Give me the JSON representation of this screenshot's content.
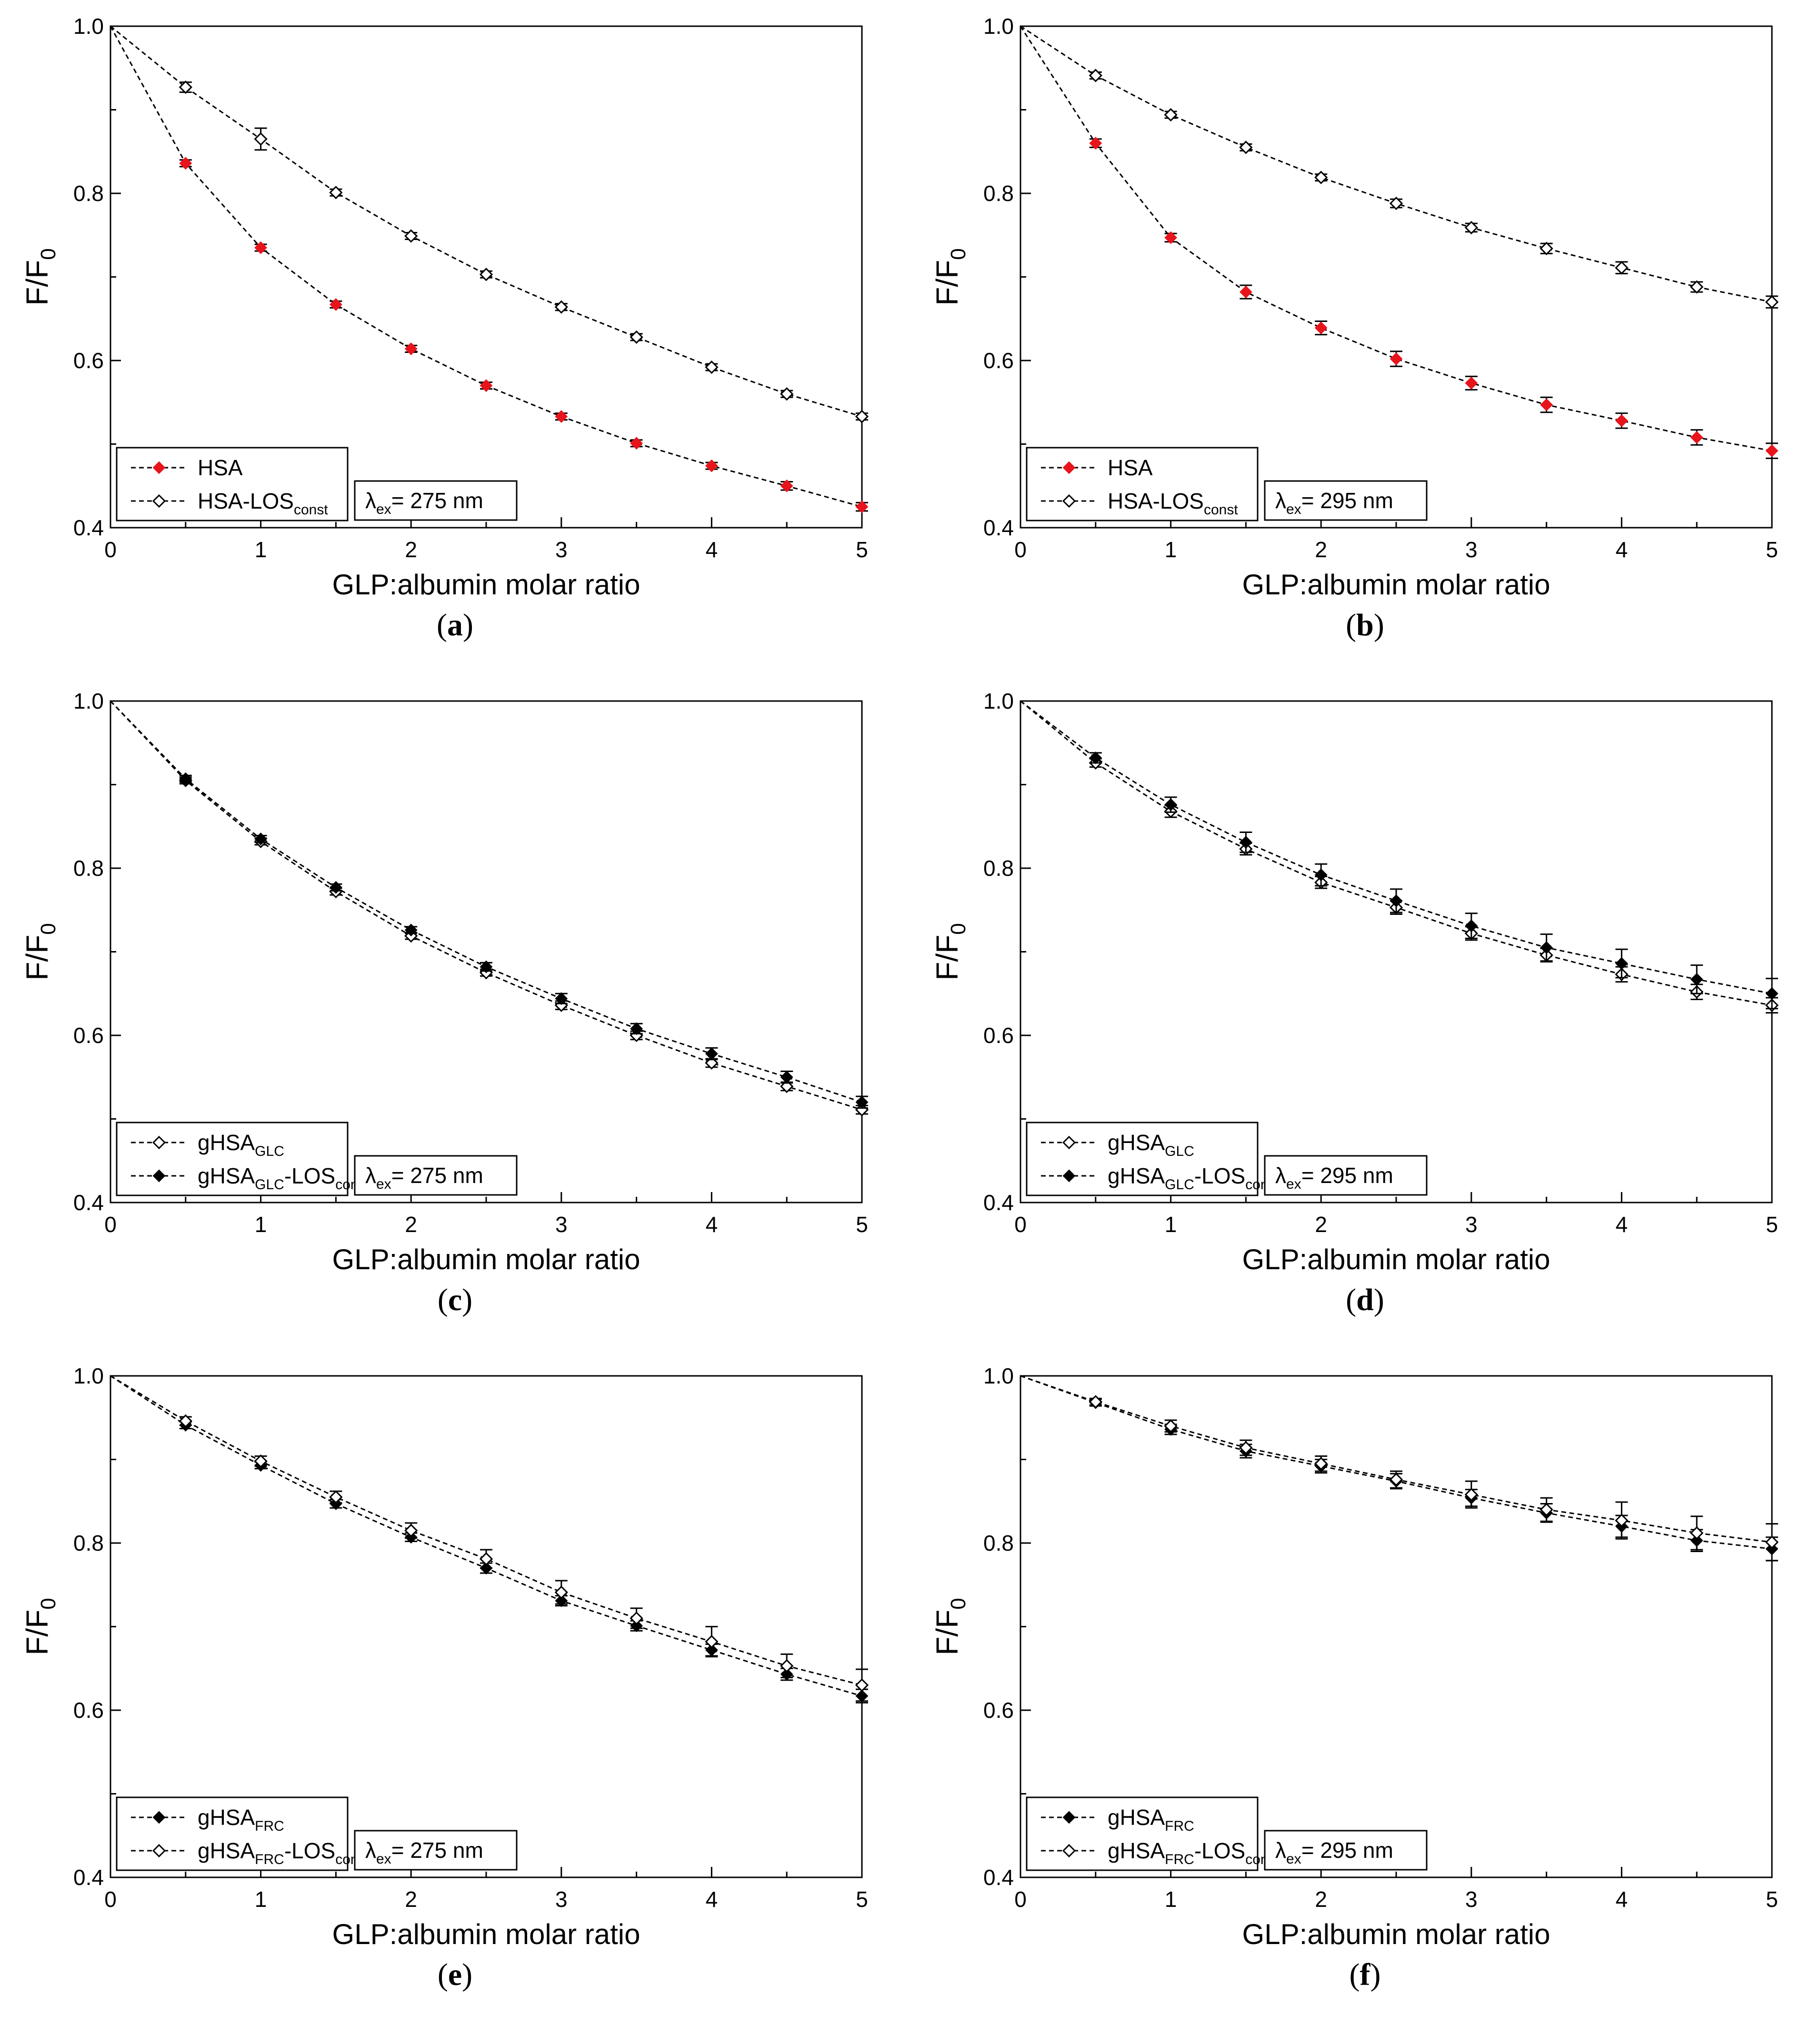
{
  "figure": {
    "colors": {
      "axis": "#000000",
      "line": "#000000",
      "red_marker": "#e8141b",
      "white": "#ffffff"
    }
  },
  "chart_data": [
    {
      "panel": "a",
      "caption_letter": "a",
      "type": "line",
      "xlabel": "GLP:albumin molar ratio",
      "ylabel": "F/F",
      "ylabel_sub": "0",
      "xlim": [
        0,
        5
      ],
      "ylim": [
        0.4,
        1.0
      ],
      "xticks": [
        "0",
        "1",
        "2",
        "3",
        "4",
        "5"
      ],
      "yticks": [
        "0.4",
        "0.6",
        "0.8",
        "1.0"
      ],
      "lambda_label": "λ",
      "lambda_sub": "ex",
      "lambda_value": "= 275 nm",
      "x": [
        0,
        0.5,
        1,
        1.5,
        2,
        2.5,
        3,
        3.5,
        4,
        4.5,
        5
      ],
      "series": [
        {
          "name": "HSA",
          "name_sub": "",
          "name_suffix": "",
          "name_suffix_sub": "",
          "marker": "red",
          "values": [
            1.0,
            0.836,
            0.735,
            0.667,
            0.614,
            0.57,
            0.533,
            0.501,
            0.474,
            0.45,
            0.425
          ],
          "errors": [
            0,
            0.004,
            0.004,
            0.004,
            0.004,
            0.004,
            0.004,
            0.004,
            0.004,
            0.005,
            0.005
          ]
        },
        {
          "name": "HSA-LOS",
          "name_sub": "const",
          "name_suffix": "",
          "name_suffix_sub": "",
          "marker": "open",
          "values": [
            1.0,
            0.927,
            0.865,
            0.801,
            0.749,
            0.703,
            0.664,
            0.628,
            0.592,
            0.56,
            0.533
          ],
          "errors": [
            0,
            0.006,
            0.013,
            0.004,
            0.004,
            0.004,
            0.004,
            0.004,
            0.004,
            0.004,
            0.004
          ]
        }
      ]
    },
    {
      "panel": "b",
      "caption_letter": "b",
      "type": "line",
      "xlabel": "GLP:albumin molar ratio",
      "ylabel": "F/F",
      "ylabel_sub": "0",
      "xlim": [
        0,
        5
      ],
      "ylim": [
        0.4,
        1.0
      ],
      "xticks": [
        "0",
        "1",
        "2",
        "3",
        "4",
        "5"
      ],
      "yticks": [
        "0.4",
        "0.6",
        "0.8",
        "1.0"
      ],
      "lambda_label": "λ",
      "lambda_sub": "ex",
      "lambda_value": "= 295 nm",
      "x": [
        0,
        0.5,
        1,
        1.5,
        2,
        2.5,
        3,
        3.5,
        4,
        4.5,
        5
      ],
      "series": [
        {
          "name": "HSA",
          "name_sub": "",
          "name_suffix": "",
          "name_suffix_sub": "",
          "marker": "red",
          "values": [
            1.0,
            0.86,
            0.747,
            0.682,
            0.639,
            0.602,
            0.573,
            0.547,
            0.528,
            0.508,
            0.492
          ],
          "errors": [
            0,
            0.005,
            0.005,
            0.008,
            0.008,
            0.009,
            0.008,
            0.009,
            0.009,
            0.009,
            0.009
          ]
        },
        {
          "name": "HSA-LOS",
          "name_sub": "const",
          "name_suffix": "",
          "name_suffix_sub": "",
          "marker": "open",
          "values": [
            1.0,
            0.941,
            0.894,
            0.855,
            0.819,
            0.788,
            0.759,
            0.734,
            0.711,
            0.688,
            0.67
          ],
          "errors": [
            0,
            0.004,
            0.004,
            0.004,
            0.004,
            0.005,
            0.005,
            0.006,
            0.007,
            0.006,
            0.007
          ]
        }
      ]
    },
    {
      "panel": "c",
      "caption_letter": "c",
      "type": "line",
      "xlabel": "GLP:albumin molar ratio",
      "ylabel": "F/F",
      "ylabel_sub": "0",
      "xlim": [
        0,
        5
      ],
      "ylim": [
        0.4,
        1.0
      ],
      "xticks": [
        "0",
        "1",
        "2",
        "3",
        "4",
        "5"
      ],
      "yticks": [
        "0.4",
        "0.6",
        "0.8",
        "1.0"
      ],
      "lambda_label": "λ",
      "lambda_sub": "ex",
      "lambda_value": "= 275 nm",
      "x": [
        0,
        0.5,
        1,
        1.5,
        2,
        2.5,
        3,
        3.5,
        4,
        4.5,
        5
      ],
      "series": [
        {
          "name": "gHSA",
          "name_sub": "GLC",
          "name_suffix": "",
          "name_suffix_sub": "",
          "marker": "open",
          "values": [
            1.0,
            0.905,
            0.832,
            0.772,
            0.719,
            0.675,
            0.636,
            0.6,
            0.567,
            0.539,
            0.511
          ],
          "errors": [
            0,
            0.004,
            0.004,
            0.004,
            0.004,
            0.004,
            0.005,
            0.005,
            0.005,
            0.005,
            0.005
          ]
        },
        {
          "name": "gHSA",
          "name_sub": "GLC",
          "name_suffix": "-LOS",
          "name_suffix_sub": "const",
          "marker": "filled",
          "values": [
            1.0,
            0.907,
            0.835,
            0.777,
            0.726,
            0.682,
            0.644,
            0.608,
            0.578,
            0.55,
            0.52
          ],
          "errors": [
            0,
            0.004,
            0.004,
            0.004,
            0.004,
            0.005,
            0.006,
            0.006,
            0.007,
            0.007,
            0.007
          ]
        }
      ]
    },
    {
      "panel": "d",
      "caption_letter": "d",
      "type": "line",
      "xlabel": "GLP:albumin molar ratio",
      "ylabel": "F/F",
      "ylabel_sub": "0",
      "xlim": [
        0,
        5
      ],
      "ylim": [
        0.4,
        1.0
      ],
      "xticks": [
        "0",
        "1",
        "2",
        "3",
        "4",
        "5"
      ],
      "yticks": [
        "0.4",
        "0.6",
        "0.8",
        "1.0"
      ],
      "lambda_label": "λ",
      "lambda_sub": "ex",
      "lambda_value": "= 295 nm",
      "x": [
        0,
        0.5,
        1,
        1.5,
        2,
        2.5,
        3,
        3.5,
        4,
        4.5,
        5
      ],
      "series": [
        {
          "name": "gHSA",
          "name_sub": "GLC",
          "name_suffix": "",
          "name_suffix_sub": "",
          "marker": "open",
          "values": [
            1.0,
            0.926,
            0.868,
            0.823,
            0.783,
            0.753,
            0.722,
            0.696,
            0.673,
            0.652,
            0.636
          ],
          "errors": [
            0,
            0.005,
            0.007,
            0.007,
            0.007,
            0.008,
            0.008,
            0.008,
            0.009,
            0.009,
            0.009
          ]
        },
        {
          "name": "gHSA",
          "name_sub": "GLC",
          "name_suffix": "-LOS",
          "name_suffix_sub": "const",
          "marker": "filled",
          "values": [
            1.0,
            0.932,
            0.876,
            0.831,
            0.792,
            0.761,
            0.731,
            0.705,
            0.686,
            0.667,
            0.65
          ],
          "errors": [
            0,
            0.006,
            0.009,
            0.012,
            0.013,
            0.014,
            0.015,
            0.016,
            0.017,
            0.017,
            0.018
          ]
        }
      ]
    },
    {
      "panel": "e",
      "caption_letter": "e",
      "type": "line",
      "xlabel": "GLP:albumin molar ratio",
      "ylabel": "F/F",
      "ylabel_sub": "0",
      "xlim": [
        0,
        5
      ],
      "ylim": [
        0.4,
        1.0
      ],
      "xticks": [
        "0",
        "1",
        "2",
        "3",
        "4",
        "5"
      ],
      "yticks": [
        "0.4",
        "0.6",
        "0.8",
        "1.0"
      ],
      "lambda_label": "λ",
      "lambda_sub": "ex",
      "lambda_value": "= 275 nm",
      "x": [
        0,
        0.5,
        1,
        1.5,
        2,
        2.5,
        3,
        3.5,
        4,
        4.5,
        5
      ],
      "series": [
        {
          "name": "gHSA",
          "name_sub": "FRC",
          "name_suffix": "",
          "name_suffix_sub": "",
          "marker": "filled",
          "values": [
            1.0,
            0.941,
            0.893,
            0.847,
            0.807,
            0.77,
            0.731,
            0.701,
            0.672,
            0.643,
            0.617
          ],
          "errors": [
            0,
            0.004,
            0.004,
            0.005,
            0.005,
            0.006,
            0.006,
            0.006,
            0.007,
            0.007,
            0.008
          ]
        },
        {
          "name": "gHSA",
          "name_sub": "FRC",
          "name_suffix": "-LOS",
          "name_suffix_sub": "const",
          "marker": "open",
          "values": [
            1.0,
            0.946,
            0.898,
            0.855,
            0.815,
            0.781,
            0.741,
            0.71,
            0.682,
            0.653,
            0.63
          ],
          "errors": [
            0,
            0.005,
            0.006,
            0.007,
            0.009,
            0.011,
            0.014,
            0.012,
            0.018,
            0.014,
            0.019
          ]
        }
      ]
    },
    {
      "panel": "f",
      "caption_letter": "f",
      "type": "line",
      "xlabel": "GLP:albumin molar ratio",
      "ylabel": "F/F",
      "ylabel_sub": "0",
      "xlim": [
        0,
        5
      ],
      "ylim": [
        0.4,
        1.0
      ],
      "xticks": [
        "0",
        "1",
        "2",
        "3",
        "4",
        "5"
      ],
      "yticks": [
        "0.4",
        "0.6",
        "0.8",
        "1.0"
      ],
      "lambda_label": "λ",
      "lambda_sub": "ex",
      "lambda_value": "= 295 nm",
      "x": [
        0,
        0.5,
        1,
        1.5,
        2,
        2.5,
        3,
        3.5,
        4,
        4.5,
        5
      ],
      "series": [
        {
          "name": "gHSA",
          "name_sub": "FRC",
          "name_suffix": "",
          "name_suffix_sub": "",
          "marker": "filled",
          "values": [
            1.0,
            0.968,
            0.936,
            0.91,
            0.892,
            0.874,
            0.854,
            0.836,
            0.82,
            0.803,
            0.793
          ],
          "errors": [
            0,
            0.004,
            0.006,
            0.008,
            0.008,
            0.009,
            0.01,
            0.011,
            0.013,
            0.013,
            0.014
          ]
        },
        {
          "name": "gHSA",
          "name_sub": "FRC",
          "name_suffix": "-LOS",
          "name_suffix_sub": "const",
          "marker": "open",
          "values": [
            1.0,
            0.969,
            0.94,
            0.914,
            0.895,
            0.876,
            0.858,
            0.84,
            0.827,
            0.812,
            0.801
          ],
          "errors": [
            0,
            0.004,
            0.007,
            0.009,
            0.009,
            0.01,
            0.016,
            0.014,
            0.022,
            0.02,
            0.022
          ]
        }
      ]
    }
  ]
}
